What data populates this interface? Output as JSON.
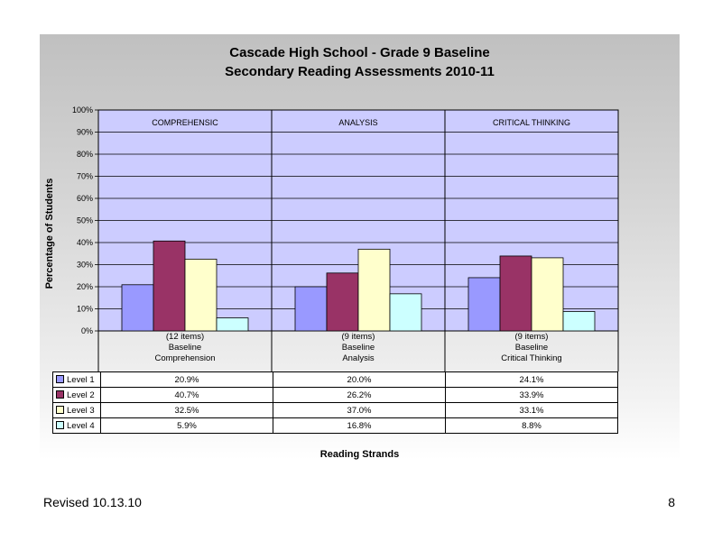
{
  "chart_data": {
    "type": "bar",
    "title": "Cascade High School - Grade 9 Baseline",
    "subtitle": "Secondary Reading Assessments 2010-11",
    "xlabel": "Reading Strands",
    "ylabel": "Percentage of Students",
    "ylim": [
      0,
      100
    ],
    "yticks": [
      "0%",
      "10%",
      "20%",
      "30%",
      "40%",
      "50%",
      "60%",
      "70%",
      "80%",
      "90%",
      "100%"
    ],
    "grid": true,
    "strands": [
      "COMPREHENSIC",
      "ANALYSIS",
      "CRITICAL THINKING"
    ],
    "categories": [
      {
        "line1": "(12 items)",
        "line2": "Baseline",
        "line3": "Comprehension"
      },
      {
        "line1": "(9 items)",
        "line2": "Baseline",
        "line3": "Analysis"
      },
      {
        "line1": "(9 items)",
        "line2": "Baseline",
        "line3": "Critical Thinking"
      }
    ],
    "series": [
      {
        "name": "Level 1",
        "color": "#9999ff",
        "values": [
          20.9,
          20.0,
          24.1
        ],
        "labels": [
          "20.9%",
          "20.0%",
          "24.1%"
        ]
      },
      {
        "name": "Level 2",
        "color": "#993366",
        "values": [
          40.7,
          26.2,
          33.9
        ],
        "labels": [
          "40.7%",
          "26.2%",
          "33.9%"
        ]
      },
      {
        "name": "Level 3",
        "color": "#ffffcc",
        "values": [
          32.5,
          37.0,
          33.1
        ],
        "labels": [
          "32.5%",
          "37.0%",
          "33.1%"
        ]
      },
      {
        "name": "Level 4",
        "color": "#ccffff",
        "values": [
          5.9,
          16.8,
          8.8
        ],
        "labels": [
          "5.9%",
          "16.8%",
          "8.8%"
        ]
      }
    ],
    "plot_background": "#ccccff"
  },
  "footer": {
    "revised": "Revised  10.13.10",
    "page_number": "8"
  }
}
